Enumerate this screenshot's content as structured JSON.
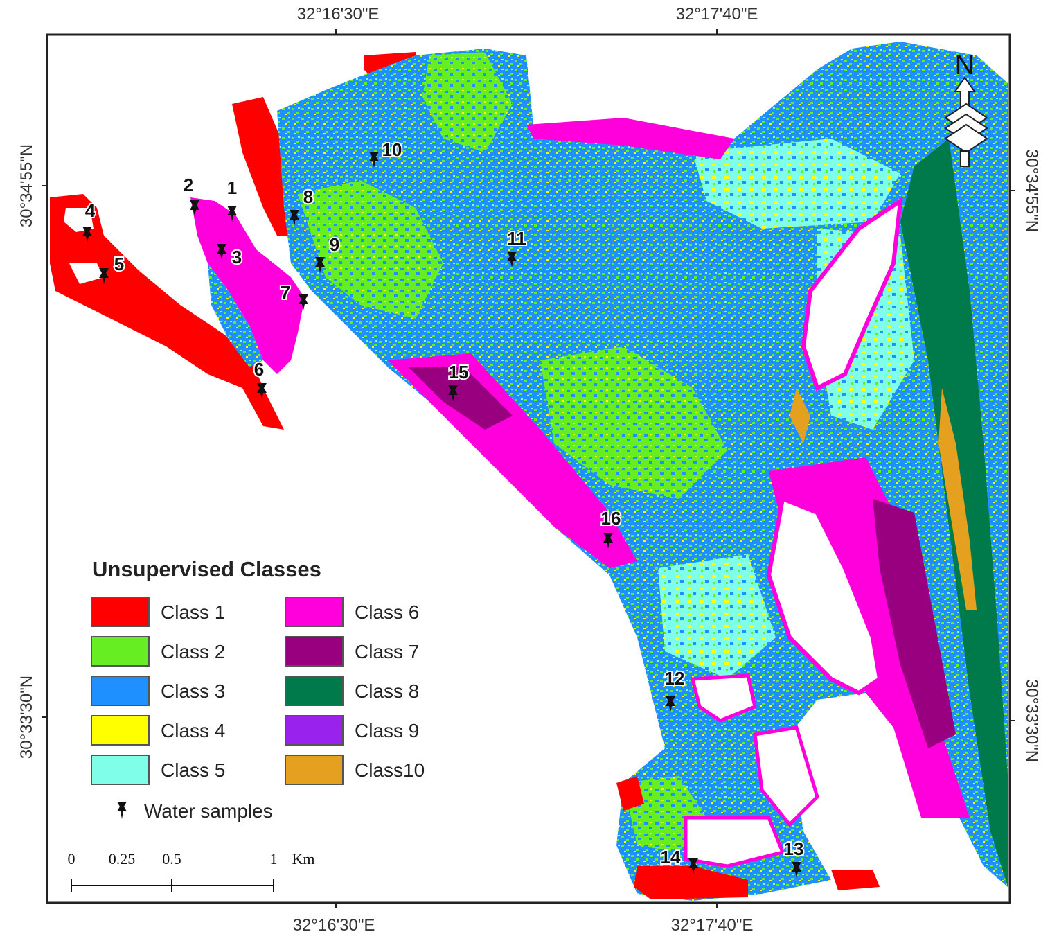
{
  "map": {
    "coords_top": [
      "32°16'30\"E",
      "32°17'40\"E"
    ],
    "coords_bottom": [
      "32°16'30\"E",
      "32°17'40\"E"
    ],
    "coords_left": [
      "30°34'55\"N",
      "30°33'30\"N"
    ],
    "coords_right": [
      "30°34'55\"N",
      "30°33'30\"N"
    ],
    "north_label": "N"
  },
  "legend": {
    "title": "Unsupervised Classes",
    "classes": [
      {
        "label": "Class 1",
        "color": "#ff0000"
      },
      {
        "label": "Class 2",
        "color": "#66ee22"
      },
      {
        "label": "Class 3",
        "color": "#1e90ff"
      },
      {
        "label": "Class 4",
        "color": "#ffff00"
      },
      {
        "label": "Class 5",
        "color": "#7fffe8"
      },
      {
        "label": "Class 6",
        "color": "#ff00dd"
      },
      {
        "label": "Class 7",
        "color": "#99007f"
      },
      {
        "label": "Class 8",
        "color": "#007a4a"
      },
      {
        "label": "Class 9",
        "color": "#9922ee"
      },
      {
        "label": "Class10",
        "color": "#e6a020"
      }
    ],
    "samples_label": "Water samples"
  },
  "scale_bar": {
    "labels": [
      "0",
      "0.25",
      "0.5",
      "1"
    ],
    "unit": "Km"
  },
  "sites": [
    "1",
    "2",
    "3",
    "4",
    "5",
    "6",
    "7",
    "8",
    "9",
    "10",
    "11",
    "12",
    "13",
    "14",
    "15",
    "16"
  ]
}
